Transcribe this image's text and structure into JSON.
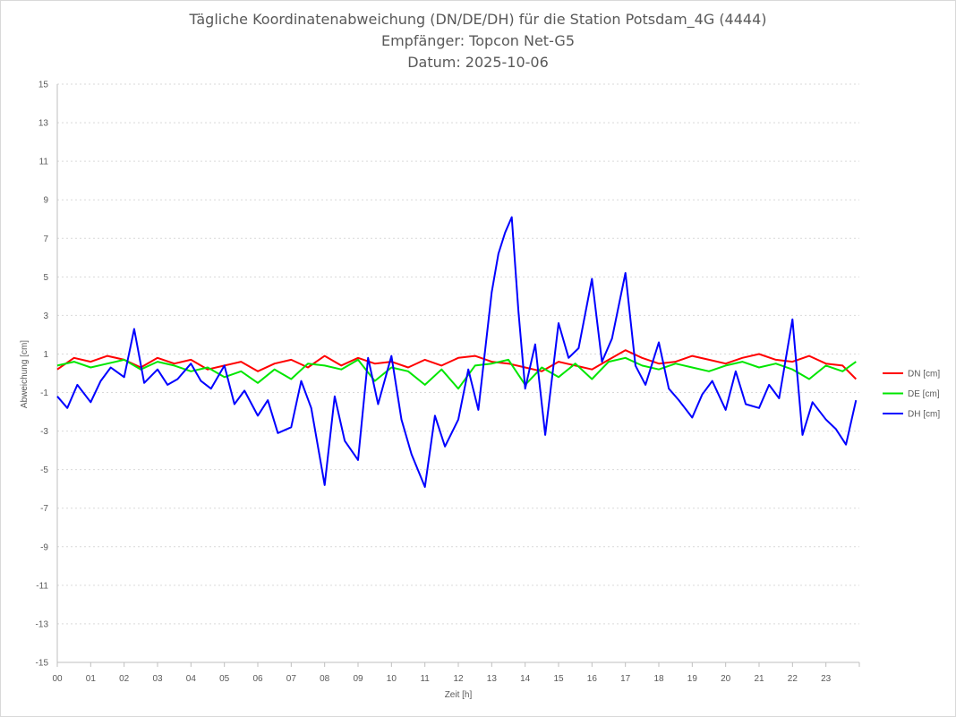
{
  "chart_data": {
    "type": "line",
    "title": "Tägliche Koordinatenabweichung (DN/DE/DH) für die Station Potsdam_4G (4444)",
    "subtitle_receiver": "Empfänger: Topcon Net-G5",
    "subtitle_date": "Datum: 2025-10-06",
    "xlabel": "Zeit [h]",
    "ylabel": "Abweichung [cm]",
    "xlim": [
      0,
      24
    ],
    "ylim": [
      -15,
      15
    ],
    "x_ticks": [
      "00",
      "01",
      "02",
      "03",
      "04",
      "05",
      "06",
      "07",
      "08",
      "09",
      "10",
      "11",
      "12",
      "13",
      "14",
      "15",
      "16",
      "17",
      "18",
      "19",
      "20",
      "21",
      "22",
      "23"
    ],
    "y_ticks": [
      "15",
      "13",
      "11",
      "9",
      "7",
      "5",
      "3",
      "1",
      "-1",
      "-3",
      "-5",
      "-7",
      "-9",
      "-11",
      "-13",
      "-15"
    ],
    "grid": true,
    "legend_position": "right",
    "series": [
      {
        "name": "DN [cm]",
        "color": "#ff0000",
        "x": [
          0,
          0.5,
          1,
          1.5,
          2,
          2.5,
          3,
          3.5,
          4,
          4.5,
          5,
          5.5,
          6,
          6.5,
          7,
          7.5,
          8,
          8.5,
          9,
          9.5,
          10,
          10.5,
          11,
          11.5,
          12,
          12.5,
          13,
          13.5,
          14,
          14.5,
          15,
          15.5,
          16,
          16.5,
          17,
          17.5,
          18,
          18.5,
          19,
          19.5,
          20,
          20.5,
          21,
          21.5,
          22,
          22.5,
          23,
          23.5,
          23.9
        ],
        "values": [
          0.2,
          0.8,
          0.6,
          0.9,
          0.7,
          0.3,
          0.8,
          0.5,
          0.7,
          0.2,
          0.4,
          0.6,
          0.1,
          0.5,
          0.7,
          0.3,
          0.9,
          0.4,
          0.8,
          0.5,
          0.6,
          0.3,
          0.7,
          0.4,
          0.8,
          0.9,
          0.6,
          0.5,
          0.3,
          0.1,
          0.6,
          0.4,
          0.2,
          0.7,
          1.2,
          0.8,
          0.5,
          0.6,
          0.9,
          0.7,
          0.5,
          0.8,
          1.0,
          0.7,
          0.6,
          0.9,
          0.5,
          0.4,
          -0.3
        ]
      },
      {
        "name": "DE [cm]",
        "color": "#00e600",
        "x": [
          0,
          0.5,
          1,
          1.5,
          2,
          2.5,
          3,
          3.5,
          4,
          4.5,
          5,
          5.5,
          6,
          6.5,
          7,
          7.5,
          8,
          8.5,
          9,
          9.5,
          10,
          10.5,
          11,
          11.5,
          12,
          12.5,
          13,
          13.5,
          14,
          14.5,
          15,
          15.5,
          16,
          16.5,
          17,
          17.5,
          18,
          18.5,
          19,
          19.5,
          20,
          20.5,
          21,
          21.5,
          22,
          22.5,
          23,
          23.5,
          23.9
        ],
        "values": [
          0.4,
          0.6,
          0.3,
          0.5,
          0.7,
          0.2,
          0.6,
          0.4,
          0.1,
          0.3,
          -0.2,
          0.1,
          -0.5,
          0.2,
          -0.3,
          0.5,
          0.4,
          0.2,
          0.7,
          -0.4,
          0.3,
          0.1,
          -0.6,
          0.2,
          -0.8,
          0.4,
          0.5,
          0.7,
          -0.6,
          0.3,
          -0.2,
          0.5,
          -0.3,
          0.6,
          0.8,
          0.4,
          0.2,
          0.5,
          0.3,
          0.1,
          0.4,
          0.6,
          0.3,
          0.5,
          0.2,
          -0.3,
          0.4,
          0.1,
          0.6
        ]
      },
      {
        "name": "DH [cm]",
        "color": "#0000ff",
        "x": [
          0,
          0.3,
          0.6,
          1,
          1.3,
          1.6,
          2,
          2.3,
          2.6,
          3,
          3.3,
          3.6,
          4,
          4.3,
          4.6,
          5,
          5.3,
          5.6,
          6,
          6.3,
          6.6,
          7,
          7.3,
          7.6,
          8,
          8.3,
          8.6,
          9,
          9.3,
          9.6,
          10,
          10.3,
          10.6,
          11,
          11.3,
          11.6,
          12,
          12.3,
          12.6,
          13,
          13.2,
          13.4,
          13.6,
          13.8,
          14,
          14.3,
          14.6,
          15,
          15.3,
          15.6,
          16,
          16.3,
          16.6,
          17,
          17.3,
          17.6,
          18,
          18.3,
          18.6,
          19,
          19.3,
          19.6,
          20,
          20.3,
          20.6,
          21,
          21.3,
          21.6,
          22,
          22.3,
          22.6,
          23,
          23.3,
          23.6,
          23.9
        ],
        "values": [
          -1.2,
          -1.8,
          -0.6,
          -1.5,
          -0.4,
          0.3,
          -0.2,
          2.3,
          -0.5,
          0.2,
          -0.6,
          -0.3,
          0.5,
          -0.4,
          -0.8,
          0.4,
          -1.6,
          -0.9,
          -2.2,
          -1.4,
          -3.1,
          -2.8,
          -0.4,
          -1.8,
          -5.8,
          -1.2,
          -3.5,
          -4.5,
          0.8,
          -1.6,
          0.9,
          -2.4,
          -4.2,
          -5.9,
          -2.2,
          -3.8,
          -2.4,
          0.2,
          -1.9,
          4.2,
          6.2,
          7.3,
          8.1,
          3.2,
          -0.8,
          1.5,
          -3.2,
          2.6,
          0.8,
          1.3,
          4.9,
          0.6,
          1.8,
          5.2,
          0.4,
          -0.6,
          1.6,
          -0.8,
          -1.4,
          -2.3,
          -1.1,
          -0.4,
          -1.9,
          0.1,
          -1.6,
          -1.8,
          -0.6,
          -1.3,
          2.8,
          -3.2,
          -1.5,
          -2.4,
          -2.9,
          -3.7,
          -1.4
        ]
      }
    ]
  }
}
